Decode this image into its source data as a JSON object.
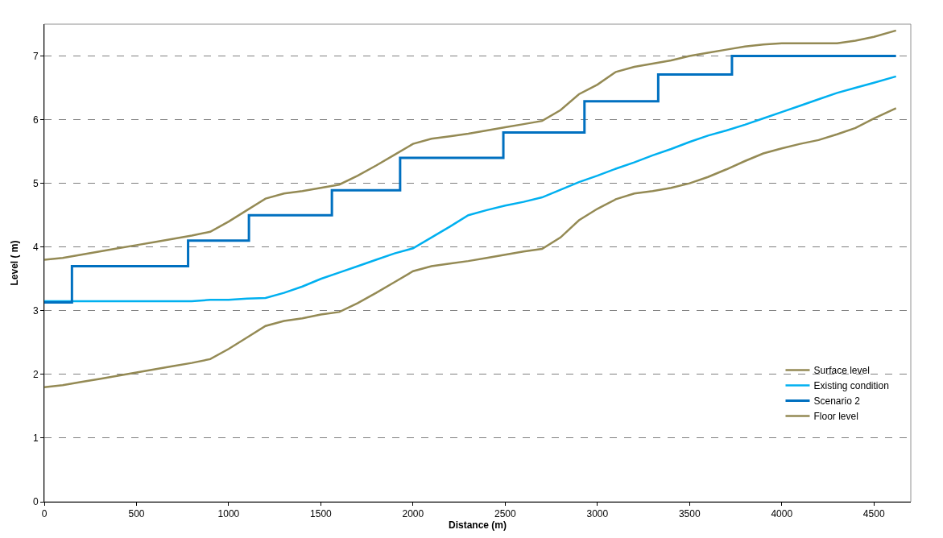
{
  "chart_data": {
    "type": "line",
    "xlabel": "Distance (m)",
    "ylabel": "Level ( m)",
    "xlim": [
      0,
      4700
    ],
    "xticks": [
      0,
      500,
      1000,
      1500,
      2000,
      2500,
      3000,
      3500,
      4000,
      4500
    ],
    "ylim": [
      0,
      7.5
    ],
    "yticks": [
      0,
      1,
      2,
      3,
      4,
      5,
      6,
      7
    ],
    "grid": "y",
    "legend": "bottom right",
    "marker": "none",
    "line_style": "solid",
    "x": [
      0,
      100,
      200,
      300,
      400,
      500,
      600,
      700,
      800,
      900,
      1000,
      1100,
      1200,
      1300,
      1400,
      1500,
      1600,
      1700,
      1800,
      1900,
      2000,
      2100,
      2200,
      2300,
      2400,
      2500,
      2600,
      2700,
      2800,
      2900,
      3000,
      3100,
      3200,
      3300,
      3400,
      3500,
      3600,
      3700,
      3800,
      3900,
      4000,
      4100,
      4200,
      4300,
      4400,
      4500,
      4620
    ],
    "series": [
      {
        "name": "Surface level",
        "color": "#948a54",
        "values": [
          1.8,
          1.83,
          1.88,
          1.93,
          1.98,
          2.03,
          2.08,
          2.13,
          2.18,
          2.24,
          2.4,
          2.58,
          2.76,
          2.84,
          2.88,
          2.94,
          2.98,
          3.12,
          3.28,
          3.45,
          3.62,
          3.7,
          3.74,
          3.78,
          3.83,
          3.88,
          3.93,
          3.97,
          4.15,
          4.42,
          4.6,
          4.75,
          4.84,
          4.88,
          4.93,
          5.0,
          5.1,
          5.22,
          5.35,
          5.47,
          5.55,
          5.62,
          5.68,
          5.77,
          5.87,
          6.02,
          6.18
        ]
      },
      {
        "name": "Existing condition",
        "color": "#00b0f0",
        "values": [
          3.15,
          3.15,
          3.15,
          3.15,
          3.15,
          3.15,
          3.15,
          3.15,
          3.15,
          3.17,
          3.17,
          3.19,
          3.2,
          3.28,
          3.38,
          3.5,
          3.6,
          3.7,
          3.8,
          3.9,
          3.98,
          4.15,
          4.32,
          4.5,
          4.58,
          4.65,
          4.71,
          4.78,
          4.9,
          5.02,
          5.12,
          5.23,
          5.33,
          5.44,
          5.54,
          5.65,
          5.75,
          5.83,
          5.92,
          6.02,
          6.12,
          6.22,
          6.32,
          6.42,
          6.5,
          6.58,
          6.68
        ]
      },
      {
        "name": "Scenario 2",
        "color": "#0070c0",
        "type": "step",
        "x": [
          0,
          150,
          780,
          1110,
          1560,
          1930,
          2490,
          2930,
          3330,
          3730,
          4620
        ],
        "values": [
          3.13,
          3.7,
          4.1,
          4.5,
          4.89,
          5.4,
          5.8,
          6.29,
          6.71,
          7.0,
          7.0
        ]
      },
      {
        "name": "Floor level",
        "color": "#948a54",
        "values": [
          3.8,
          3.83,
          3.88,
          3.93,
          3.98,
          4.03,
          4.08,
          4.13,
          4.18,
          4.24,
          4.4,
          4.58,
          4.76,
          4.84,
          4.88,
          4.93,
          4.98,
          5.12,
          5.28,
          5.45,
          5.62,
          5.7,
          5.74,
          5.78,
          5.83,
          5.88,
          5.93,
          5.98,
          6.15,
          6.4,
          6.55,
          6.75,
          6.83,
          6.88,
          6.93,
          7.0,
          7.05,
          7.1,
          7.15,
          7.18,
          7.2,
          7.2,
          7.2,
          7.2,
          7.24,
          7.3,
          7.4
        ]
      }
    ]
  }
}
